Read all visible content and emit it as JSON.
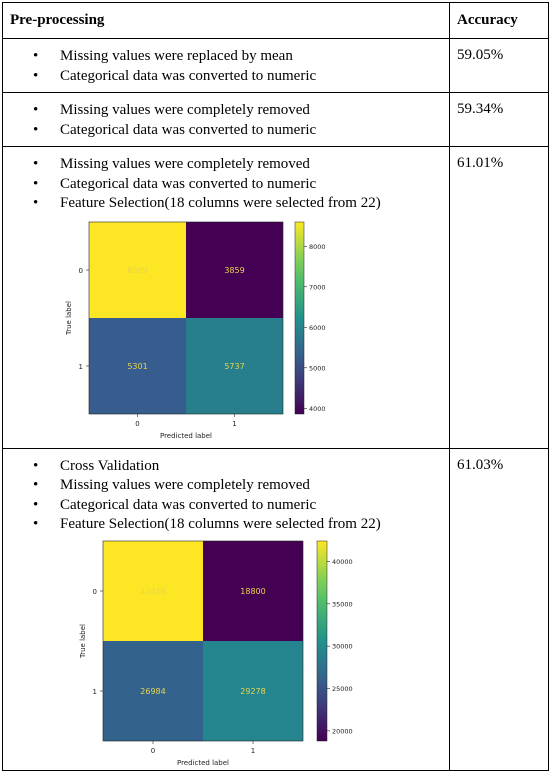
{
  "table": {
    "headers": {
      "preprocessing": "Pre-processing",
      "accuracy": "Accuracy"
    },
    "rows": [
      {
        "bullets": [
          "Missing values were replaced by mean",
          "Categorical data was converted to numeric"
        ],
        "accuracy": "59.05%"
      },
      {
        "bullets": [
          "Missing values were completely removed",
          "Categorical data was converted to numeric"
        ],
        "accuracy": "59.34%"
      },
      {
        "bullets": [
          "Missing values were completely removed",
          "Categorical data was converted to numeric",
          "Feature Selection(18 columns were selected from 22)"
        ],
        "accuracy": "61.01%"
      },
      {
        "bullets": [
          "Cross Validation",
          "Missing values were completely removed",
          "Categorical data was converted to numeric",
          "Feature Selection(18 columns were selected from 22)"
        ],
        "accuracy": "61.03%"
      }
    ]
  },
  "chart_data": [
    {
      "type": "heatmap",
      "xlabel": "Predicted label",
      "ylabel": "True label",
      "x_ticks": [
        "0",
        "1"
      ],
      "y_ticks": [
        "0",
        "1"
      ],
      "values": [
        [
          8599,
          3859
        ],
        [
          5301,
          5737
        ]
      ],
      "colorbar_ticks": [
        "8000",
        "7000",
        "6000",
        "5000",
        "4000"
      ],
      "colorbar_range": [
        3859,
        8599
      ],
      "colormap": "viridis",
      "cell_colors": [
        [
          "#fde725",
          "#440154"
        ],
        [
          "#365d8d",
          "#277f8e"
        ]
      ],
      "text_color": "#e8d44d"
    },
    {
      "type": "heatmap",
      "xlabel": "Predicted label",
      "ylabel": "True label",
      "x_ticks": [
        "0",
        "1"
      ],
      "y_ticks": [
        "0",
        "1"
      ],
      "values": [
        [
          42418,
          18800
        ],
        [
          26984,
          29278
        ]
      ],
      "colorbar_ticks": [
        "40000",
        "35000",
        "30000",
        "25000",
        "20000"
      ],
      "colorbar_range": [
        18800,
        42418
      ],
      "colormap": "viridis",
      "cell_colors": [
        [
          "#fde725",
          "#440154"
        ],
        [
          "#33638d",
          "#25858e"
        ]
      ],
      "text_color": "#e8d44d"
    }
  ]
}
